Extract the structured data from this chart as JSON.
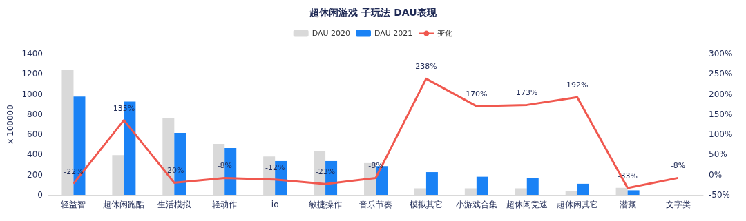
{
  "chart_data": {
    "type": "bar",
    "title": "超休闲游戏 子玩法 DAU表现",
    "ylabel": "x 100000",
    "categories": [
      "轻益智",
      "超休闲跑酷",
      "生活模拟",
      "轻动作",
      "io",
      "敏捷操作",
      "音乐节奏",
      "模拟其它",
      "小游戏合集",
      "超休闲竞速",
      "超休闲其它",
      "潜藏",
      "文字类"
    ],
    "series": [
      {
        "name": "DAU 2020",
        "color": "#d9d9d9",
        "values": [
          1240,
          395,
          765,
          505,
          380,
          430,
          315,
          65,
          65,
          65,
          40,
          70,
          null
        ]
      },
      {
        "name": "DAU 2021",
        "color": "#1a82f5",
        "values": [
          975,
          925,
          615,
          465,
          335,
          335,
          285,
          225,
          180,
          170,
          110,
          45,
          null
        ]
      },
      {
        "name": "变化",
        "type": "line",
        "axis": "y2",
        "color": "#f0584f",
        "marker": "none",
        "values": [
          -22,
          135,
          -20,
          -8,
          -12,
          -23,
          -8,
          238,
          170,
          173,
          192,
          -33,
          -8
        ],
        "value_labels": [
          "-22%",
          "135%",
          "-20%",
          "-8%",
          "-12%",
          "-23%",
          "-8%",
          "238%",
          "170%",
          "173%",
          "192%",
          "-33%",
          "-8%"
        ]
      }
    ],
    "ylim": [
      0,
      1400
    ],
    "yticks": [
      0,
      200,
      400,
      600,
      800,
      1000,
      1200,
      1400
    ],
    "y2lim": [
      -50,
      300
    ],
    "y2ticks": [
      {
        "value": -50,
        "label": "-50%"
      },
      {
        "value": 0,
        "label": "0%"
      },
      {
        "value": 50,
        "label": "50%"
      },
      {
        "value": 100,
        "label": "100%"
      },
      {
        "value": 150,
        "label": "150%"
      },
      {
        "value": 200,
        "label": "200%"
      },
      {
        "value": 250,
        "label": "250%"
      },
      {
        "value": 300,
        "label": "300%"
      }
    ],
    "legend": "top",
    "grid": false
  }
}
